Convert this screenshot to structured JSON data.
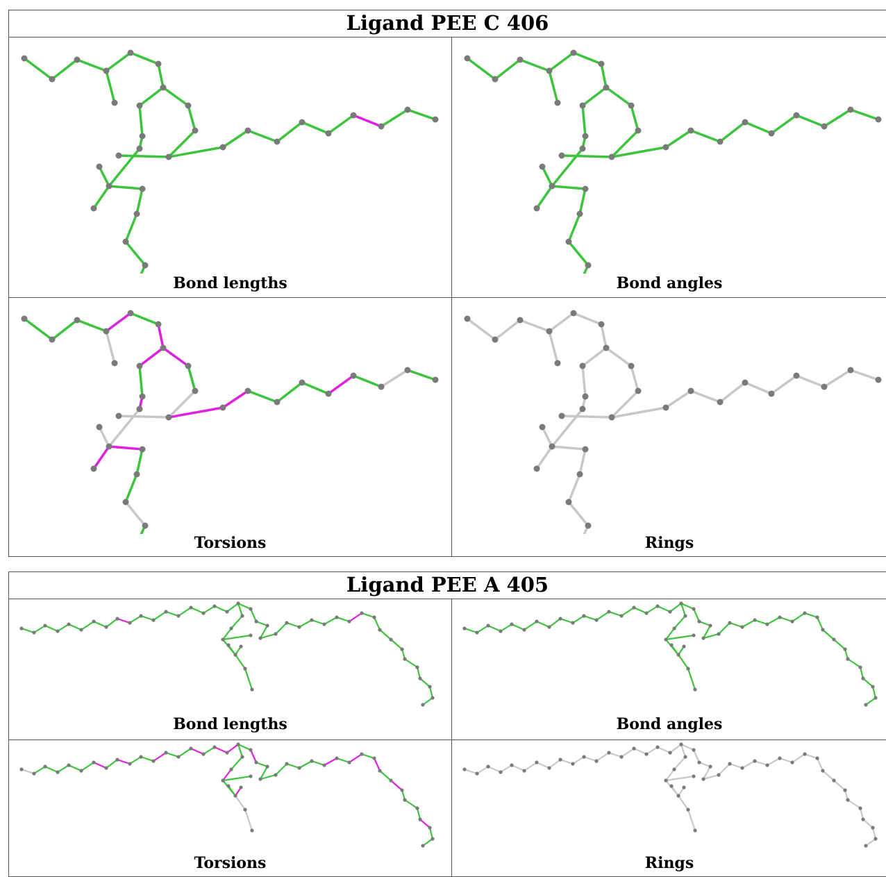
{
  "blocks": [
    {
      "title": "Ligand PEE C 406",
      "panels": [
        {
          "caption": "Bond lengths"
        },
        {
          "caption": "Bond angles"
        },
        {
          "caption": "Torsions"
        },
        {
          "caption": "Rings"
        }
      ]
    },
    {
      "title": "Ligand PEE A 405",
      "panels": [
        {
          "caption": "Bond lengths"
        },
        {
          "caption": "Bond angles"
        },
        {
          "caption": "Torsions"
        },
        {
          "caption": "Rings"
        }
      ]
    }
  ],
  "colors": {
    "ok_bond": "#3cc43c",
    "outlier_bond": "#e020e0",
    "neutral_bond": "#c8c8c8",
    "atom": "#7a7a7a"
  }
}
